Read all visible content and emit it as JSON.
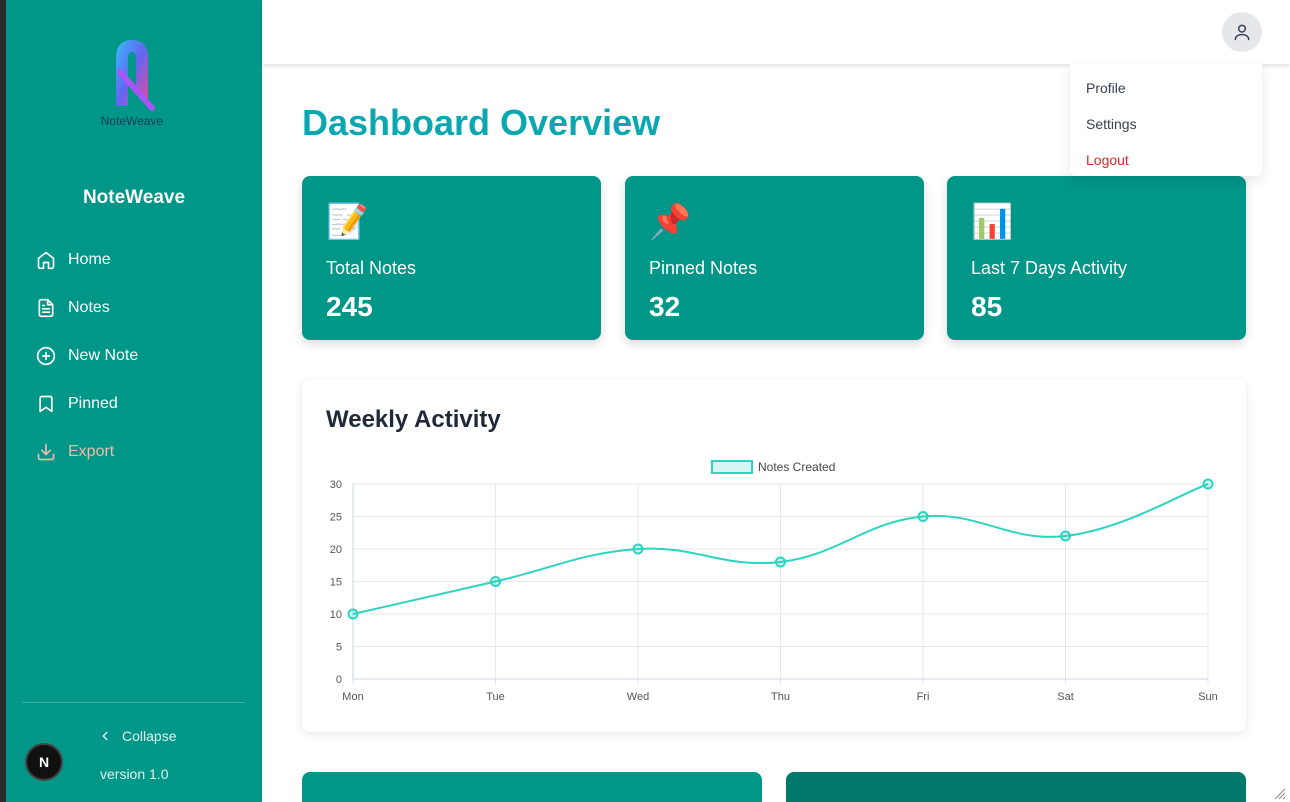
{
  "app": {
    "name": "NoteWeave",
    "logo_text": "NoteWeave",
    "version": "version 1.0"
  },
  "sidebar": {
    "items": [
      {
        "label": "Home",
        "icon": "home-icon"
      },
      {
        "label": "Notes",
        "icon": "file-text-icon"
      },
      {
        "label": "New Note",
        "icon": "plus-circle-icon"
      },
      {
        "label": "Pinned",
        "icon": "bookmark-icon"
      },
      {
        "label": "Export",
        "icon": "download-icon"
      }
    ],
    "collapse_label": "Collapse"
  },
  "user_menu": {
    "items": [
      "Profile",
      "Settings",
      "Logout"
    ]
  },
  "dashboard": {
    "title": "Dashboard Overview",
    "cards": [
      {
        "emoji": "📝",
        "label": "Total Notes",
        "value": "245"
      },
      {
        "emoji": "📌",
        "label": "Pinned Notes",
        "value": "32"
      },
      {
        "emoji": "📊",
        "label": "Last 7 Days Activity",
        "value": "85"
      }
    ],
    "chart_title": "Weekly Activity"
  },
  "colors": {
    "sidebar": "#009688",
    "accent_title": "#0aa7b0",
    "line": "#2dd4bf",
    "logout": "#dc2626",
    "export": "#f6b8a8"
  },
  "chart_data": {
    "type": "line",
    "categories": [
      "Mon",
      "Tue",
      "Wed",
      "Thu",
      "Fri",
      "Sat",
      "Sun"
    ],
    "series": [
      {
        "name": "Notes Created",
        "values": [
          10,
          15,
          20,
          18,
          25,
          22,
          30
        ]
      }
    ],
    "y_ticks": [
      0,
      5,
      10,
      15,
      20,
      25,
      30
    ],
    "ylim": [
      0,
      30
    ],
    "grid": true,
    "legend": "top-center"
  }
}
